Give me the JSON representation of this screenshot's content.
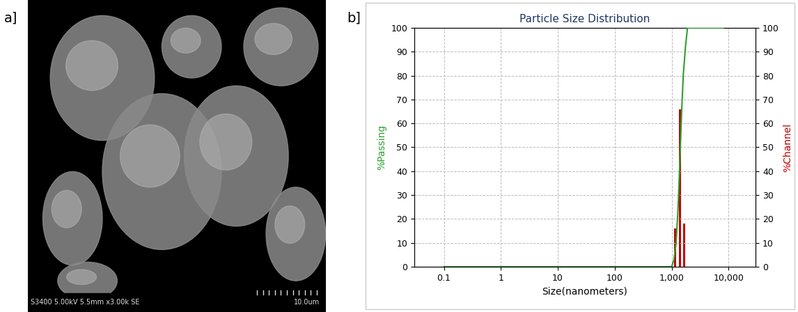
{
  "panel_labels": [
    "a]",
    "b]"
  ],
  "image_panel": {
    "caption": "S3400 5.00kV 5.5mm x3.00k SE",
    "scale_bar": "10.0um"
  },
  "chart_data": {
    "type": "line",
    "title": "Particle Size Distribution",
    "x_label": "Size(nanometers)",
    "y_label": "%Passing",
    "y2_label": "%Channel",
    "log": "x",
    "grid": true,
    "xlim": [
      0.03,
      30000
    ],
    "xticks": [
      0.1,
      1,
      10,
      100,
      {
        "value": 1000,
        "label": "1,000"
      },
      {
        "value": 10000,
        "label": "10,000"
      }
    ],
    "ylim": [
      0,
      100
    ],
    "yticks": [
      0,
      10,
      20,
      30,
      40,
      50,
      60,
      70,
      80,
      90,
      100
    ],
    "y2lim": [
      0,
      100
    ],
    "y2ticks": [
      0,
      10,
      20,
      30,
      40,
      50,
      60,
      70,
      80,
      90,
      100
    ],
    "series": [
      {
        "type": "line",
        "color": "#2ca02c",
        "axis": "y",
        "x": [
          0.1,
          1000,
          1100,
          1200,
          1300,
          1400,
          1500,
          1600,
          1750,
          1900,
          8000
        ],
        "values": [
          0,
          0,
          3,
          10,
          25,
          45,
          65,
          80,
          92,
          100,
          100
        ]
      },
      {
        "type": "bar",
        "color": "#c00000",
        "axis": "y2",
        "x": [
          1150,
          1400,
          1650
        ],
        "values": [
          16,
          66,
          18
        ]
      }
    ]
  }
}
